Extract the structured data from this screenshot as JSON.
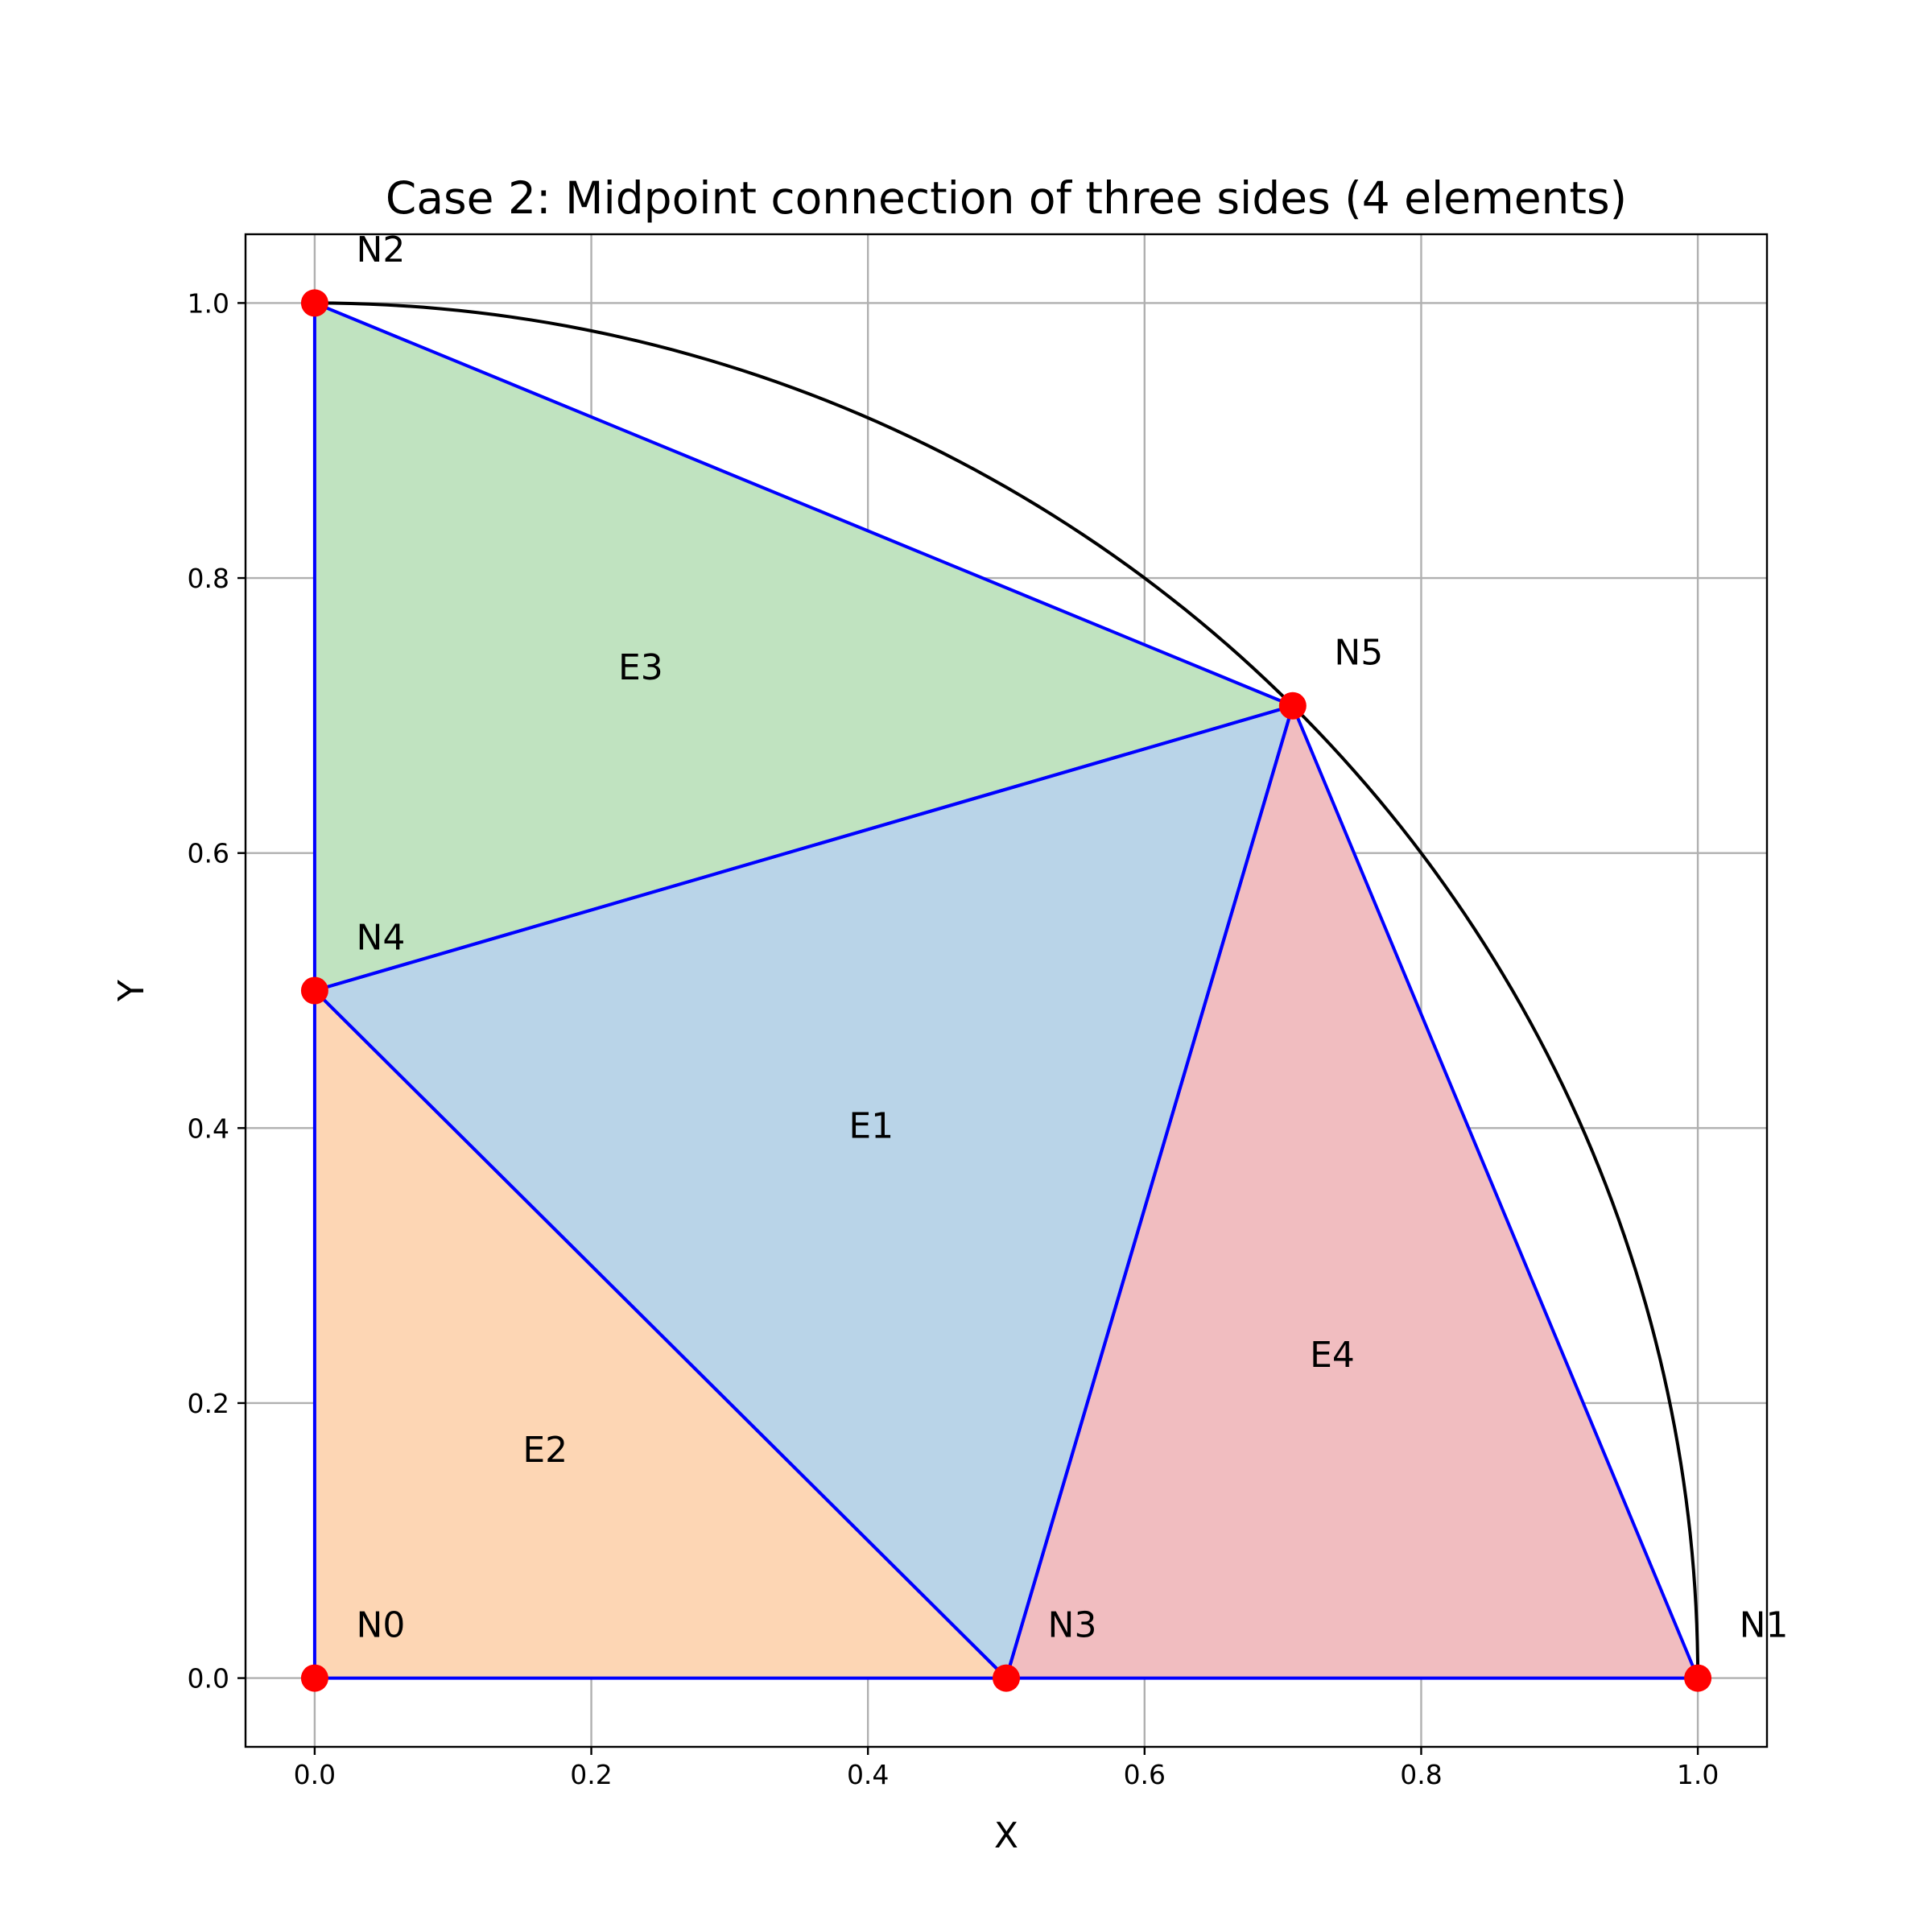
{
  "chart_data": {
    "type": "diagram",
    "title": "Case 2: Midpoint connection of three sides (4 elements)",
    "xlabel": "X",
    "ylabel": "Y",
    "xlim": [
      -0.05,
      1.05
    ],
    "ylim": [
      -0.05,
      1.05
    ],
    "xticks": [
      0.0,
      0.2,
      0.4,
      0.6,
      0.8,
      1.0
    ],
    "yticks": [
      0.0,
      0.2,
      0.4,
      0.6,
      0.8,
      1.0
    ],
    "xtick_labels": [
      "0.0",
      "0.2",
      "0.4",
      "0.6",
      "0.8",
      "1.0"
    ],
    "ytick_labels": [
      "0.0",
      "0.2",
      "0.4",
      "0.6",
      "0.8",
      "1.0"
    ],
    "grid": true,
    "nodes": [
      {
        "label": "N0",
        "x": 0.0,
        "y": 0.0
      },
      {
        "label": "N1",
        "x": 1.0,
        "y": 0.0
      },
      {
        "label": "N2",
        "x": 0.0,
        "y": 1.0
      },
      {
        "label": "N3",
        "x": 0.5,
        "y": 0.0
      },
      {
        "label": "N4",
        "x": 0.0,
        "y": 0.5
      },
      {
        "label": "N5",
        "x": 0.7071,
        "y": 0.7071
      }
    ],
    "elements": [
      {
        "label": "E1",
        "nodes": [
          3,
          5,
          4
        ],
        "color": "#b9d4e8"
      },
      {
        "label": "E2",
        "nodes": [
          0,
          3,
          4
        ],
        "color": "#fdd6b4"
      },
      {
        "label": "E3",
        "nodes": [
          4,
          5,
          2
        ],
        "color": "#c0e3c0"
      },
      {
        "label": "E4",
        "nodes": [
          3,
          1,
          5
        ],
        "color": "#f1bdc0"
      }
    ],
    "arc": {
      "center": [
        0.0,
        0.0
      ],
      "radius": 1.0,
      "start_deg": 0,
      "end_deg": 90,
      "color": "#000000"
    },
    "edge_color": "#0000ff",
    "node_color": "#ff0000"
  }
}
